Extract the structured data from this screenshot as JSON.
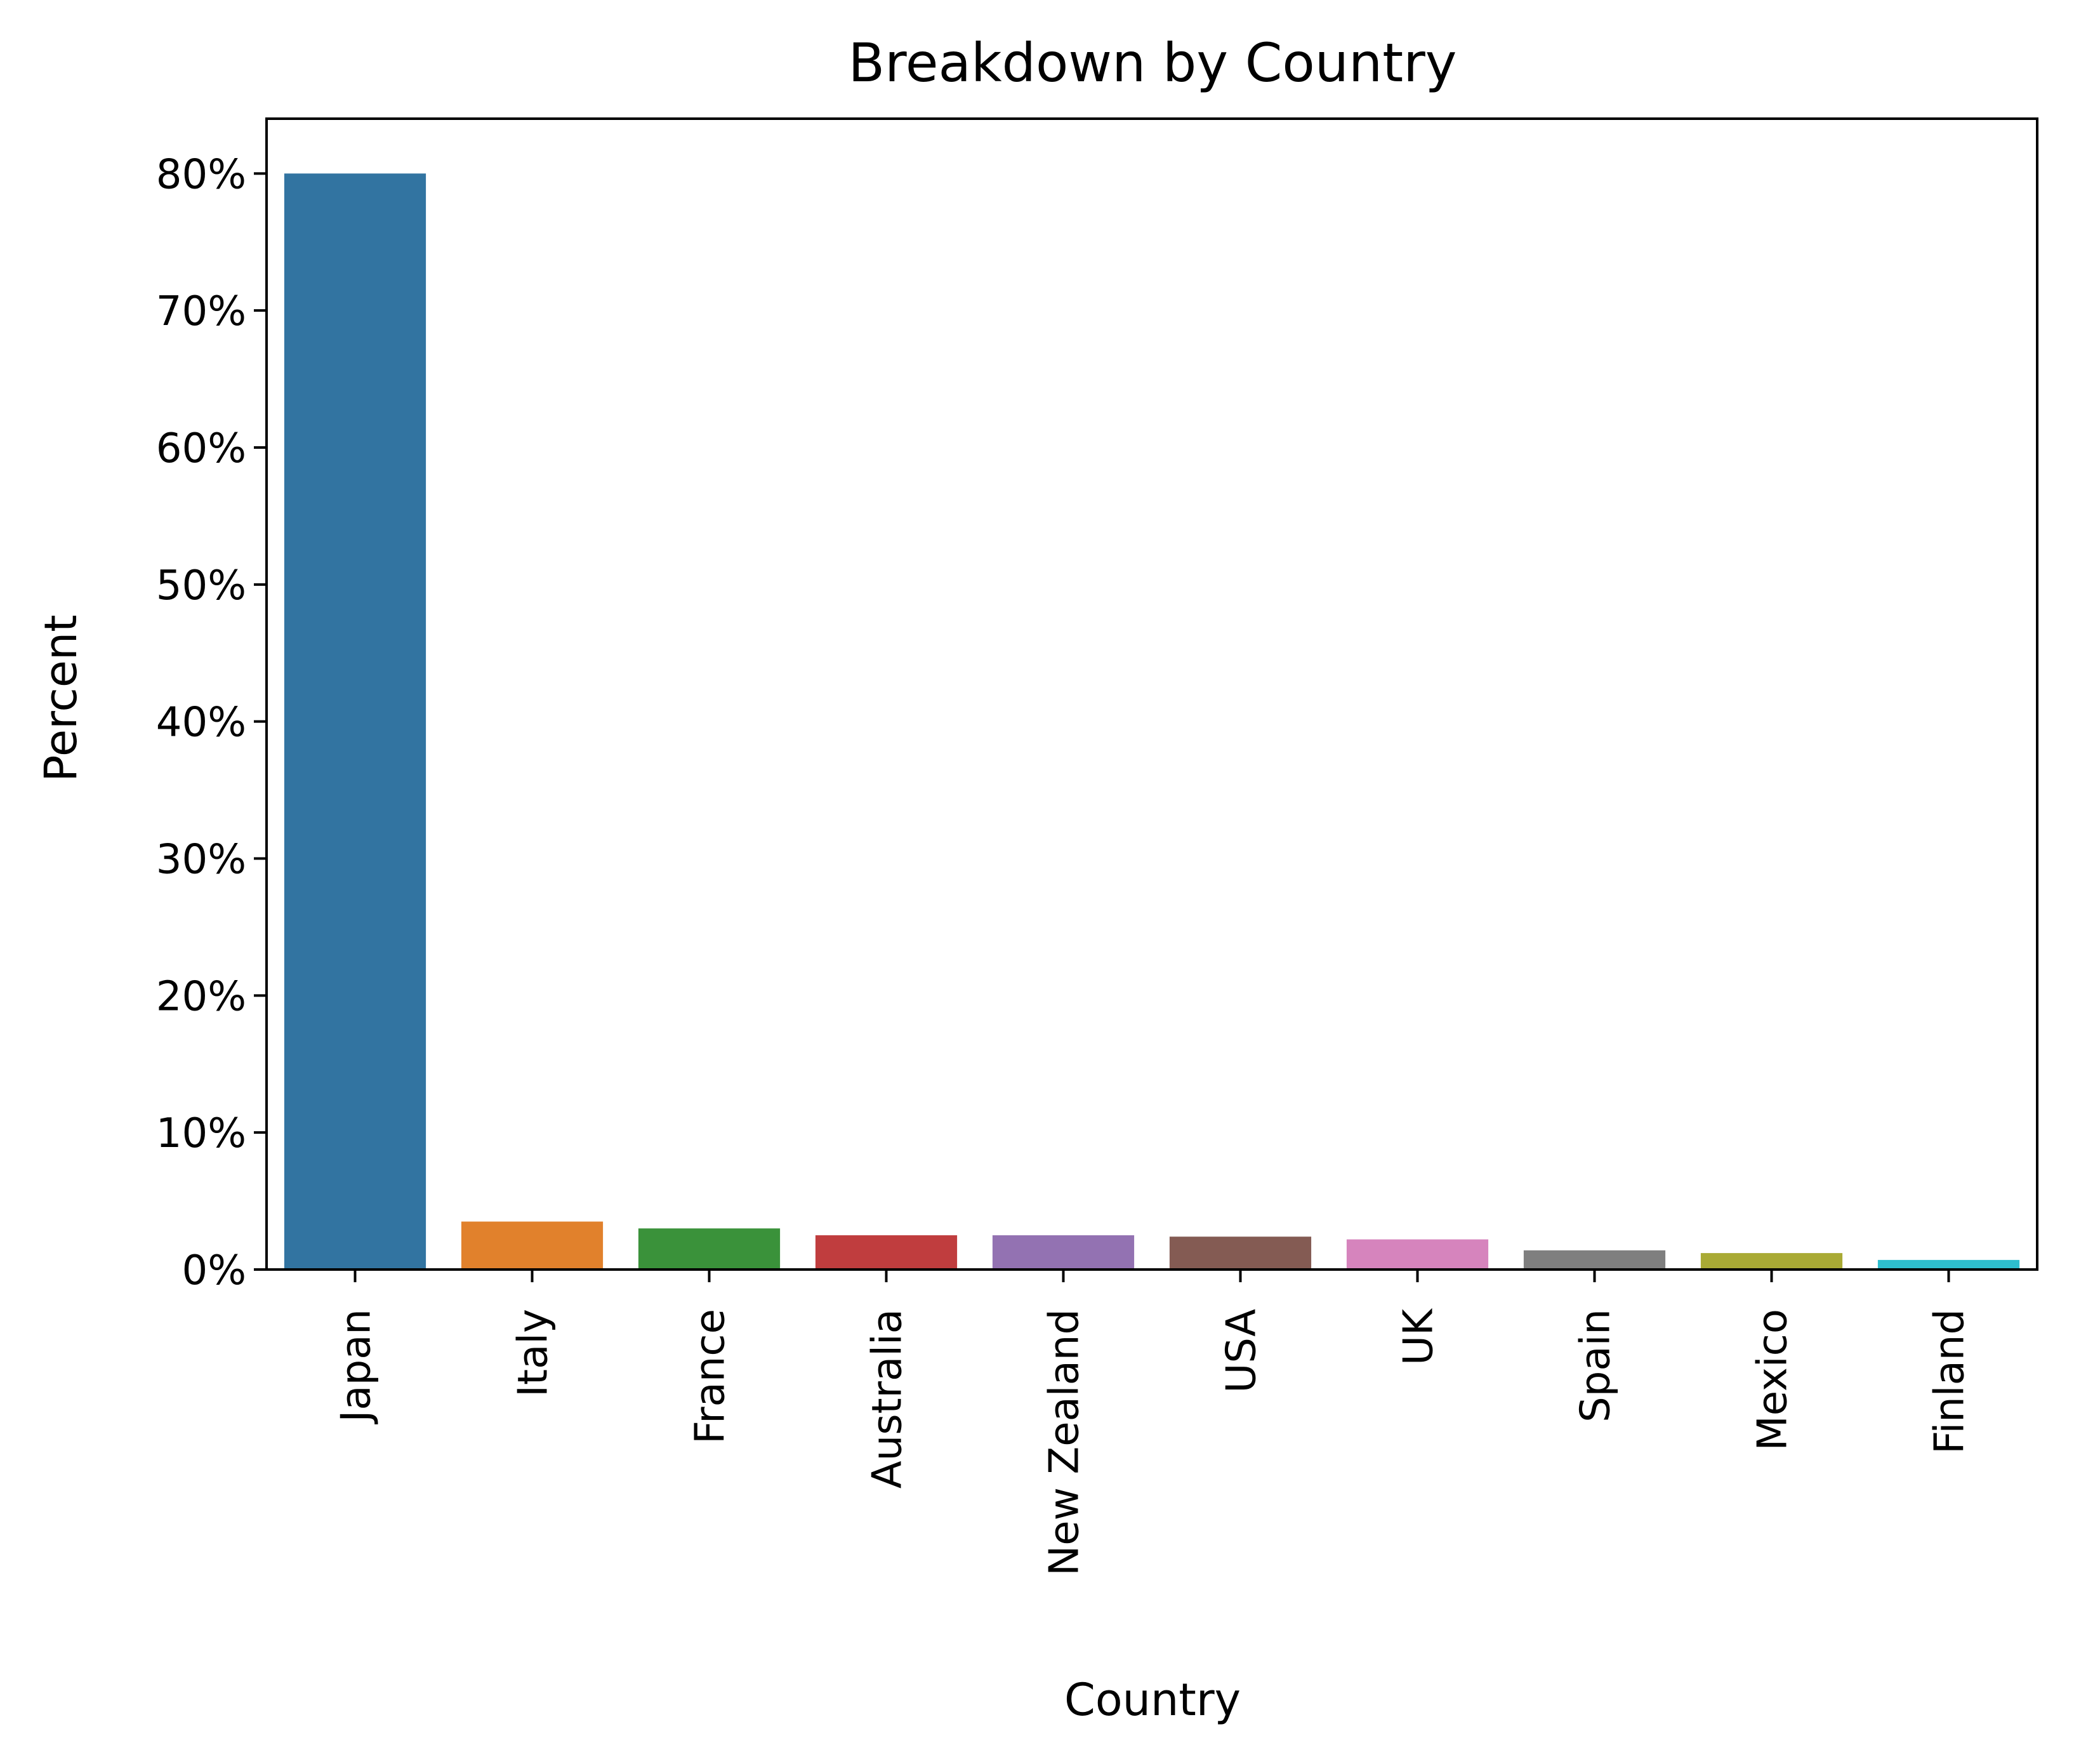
{
  "chart_data": {
    "type": "bar",
    "title": "Breakdown by Country",
    "xlabel": "Country",
    "ylabel": "Percent",
    "categories": [
      "Japan",
      "Italy",
      "France",
      "Australia",
      "New Zealand",
      "USA",
      "UK",
      "Spain",
      "Mexico",
      "Finland"
    ],
    "values": [
      80.0,
      3.5,
      3.0,
      2.5,
      2.5,
      2.4,
      2.2,
      1.4,
      1.2,
      0.7
    ],
    "colors": [
      "#3274a1",
      "#e1812c",
      "#3a923a",
      "#c03d3e",
      "#9372b2",
      "#845b53",
      "#d684bd",
      "#7f7f7f",
      "#a9aa35",
      "#2ebece"
    ],
    "ylim": [
      0,
      84
    ],
    "yticks": [
      0,
      10,
      20,
      30,
      40,
      50,
      60,
      70,
      80
    ],
    "ytick_labels": [
      "0%",
      "10%",
      "20%",
      "30%",
      "40%",
      "50%",
      "60%",
      "70%",
      "80%"
    ],
    "grid": false,
    "legend": "none"
  }
}
